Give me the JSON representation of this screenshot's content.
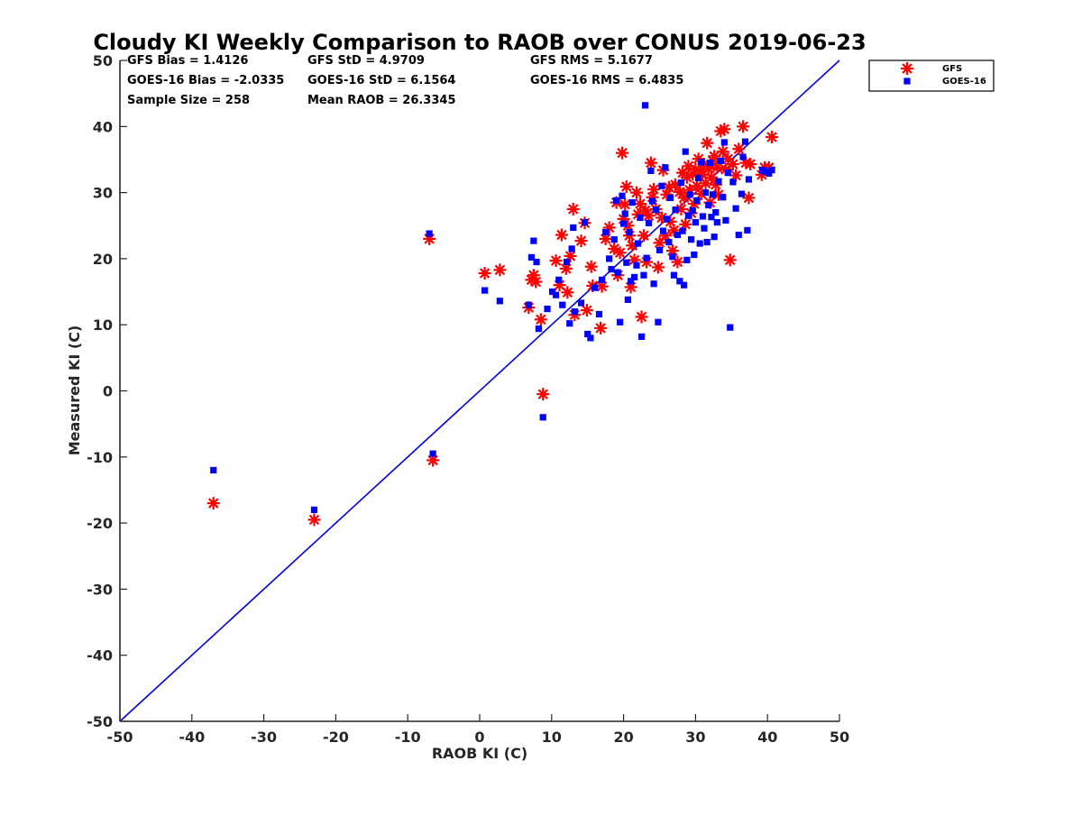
{
  "chart_data": {
    "type": "scatter",
    "title": "Cloudy KI Weekly Comparison to RAOB over CONUS 2019-06-23",
    "xlabel": "RAOB KI (C)",
    "ylabel": "Measured KI (C)",
    "xlim": [
      -50,
      50
    ],
    "ylim": [
      -50,
      50
    ],
    "xticks": [
      -50,
      -40,
      -30,
      -20,
      -10,
      0,
      10,
      20,
      30,
      40,
      50
    ],
    "yticks": [
      -50,
      -40,
      -30,
      -20,
      -10,
      0,
      10,
      20,
      30,
      40,
      50
    ],
    "legend_position": "outside-top-right",
    "stats": {
      "gfs_bias": "GFS Bias = 1.4126",
      "gfs_std": "GFS StD = 4.9709",
      "gfs_rms": "GFS RMS = 5.1677",
      "goes_bias": "GOES-16 Bias = -2.0335",
      "goes_std": "GOES-16 StD = 6.1564",
      "goes_rms": "GOES-16 RMS = 6.4835",
      "sample_size": "Sample Size = 258",
      "mean_raob": "Mean RAOB = 26.3345"
    },
    "reference_line": {
      "name": "1:1 line",
      "x": [
        -50,
        50
      ],
      "y": [
        -50,
        50
      ],
      "color": "#0000dd"
    },
    "series": [
      {
        "name": "GFS",
        "marker": "asterisk",
        "color": "#ff0000",
        "points": [
          [
            -37,
            -17
          ],
          [
            -23,
            -19.5
          ],
          [
            -7,
            23
          ],
          [
            -6.5,
            -10.5
          ],
          [
            0.7,
            17.8
          ],
          [
            2.8,
            18.3
          ],
          [
            6.8,
            12.6
          ],
          [
            7.2,
            16.8
          ],
          [
            7.5,
            17.5
          ],
          [
            7.8,
            16.5
          ],
          [
            8.5,
            10.8
          ],
          [
            8.8,
            -0.5
          ],
          [
            10.6,
            19.7
          ],
          [
            11.1,
            16
          ],
          [
            11.4,
            23.6
          ],
          [
            12,
            18.5
          ],
          [
            12.2,
            14.9
          ],
          [
            12.6,
            20.4
          ],
          [
            13,
            27.5
          ],
          [
            13.2,
            11.5
          ],
          [
            14.1,
            22.7
          ],
          [
            14.6,
            25.4
          ],
          [
            14.9,
            12.2
          ],
          [
            15.5,
            18.8
          ],
          [
            15.7,
            15.9
          ],
          [
            16.8,
            9.5
          ],
          [
            17,
            15.8
          ],
          [
            17.5,
            23
          ],
          [
            18,
            24.7
          ],
          [
            18.7,
            21.5
          ],
          [
            19,
            28.5
          ],
          [
            19.2,
            17.5
          ],
          [
            19.5,
            20.9
          ],
          [
            19.8,
            36
          ],
          [
            20,
            26
          ],
          [
            20.2,
            28.2
          ],
          [
            20.4,
            30.9
          ],
          [
            20.6,
            25
          ],
          [
            20.8,
            23.5
          ],
          [
            21,
            15.7
          ],
          [
            21.2,
            22
          ],
          [
            21.5,
            19.8
          ],
          [
            21.8,
            30
          ],
          [
            22,
            26.7
          ],
          [
            22.3,
            28.3
          ],
          [
            22.5,
            11.2
          ],
          [
            22.8,
            23.5
          ],
          [
            23,
            27.3
          ],
          [
            23.2,
            19.5
          ],
          [
            23.5,
            26.5
          ],
          [
            23.8,
            34.5
          ],
          [
            24,
            29.3
          ],
          [
            24.2,
            30.5
          ],
          [
            24.5,
            27.5
          ],
          [
            24.8,
            18.7
          ],
          [
            25,
            22.4
          ],
          [
            25.3,
            26.2
          ],
          [
            25.5,
            33.4
          ],
          [
            25.8,
            23.5
          ],
          [
            26,
            29.7
          ],
          [
            26.3,
            30.8
          ],
          [
            26.5,
            25.6
          ],
          [
            26.8,
            21.2
          ],
          [
            27,
            24.3
          ],
          [
            27.2,
            31.2
          ],
          [
            27.5,
            19.5
          ],
          [
            27.8,
            30.1
          ],
          [
            28,
            27.5
          ],
          [
            28.2,
            33
          ],
          [
            28.4,
            29.2
          ],
          [
            28.6,
            25.2
          ],
          [
            28.8,
            32.3
          ],
          [
            29,
            34
          ],
          [
            29.2,
            30.4
          ],
          [
            29.4,
            26.9
          ],
          [
            29.6,
            32.8
          ],
          [
            29.8,
            28.3
          ],
          [
            30,
            33.5
          ],
          [
            30.2,
            31
          ],
          [
            30.4,
            35.1
          ],
          [
            30.6,
            33.2
          ],
          [
            30.8,
            29.8
          ],
          [
            31,
            32.7
          ],
          [
            31.2,
            34.3
          ],
          [
            31.4,
            31.4
          ],
          [
            31.6,
            37.5
          ],
          [
            31.8,
            33.6
          ],
          [
            32,
            28.5
          ],
          [
            32.2,
            32.3
          ],
          [
            32.4,
            34.8
          ],
          [
            32.6,
            35.5
          ],
          [
            32.8,
            31.2
          ],
          [
            33,
            33.8
          ],
          [
            33.2,
            29.7
          ],
          [
            33.5,
            39.3
          ],
          [
            33.8,
            36.2
          ],
          [
            34,
            39.6
          ],
          [
            34.2,
            33.5
          ],
          [
            34.5,
            35.1
          ],
          [
            34.8,
            19.8
          ],
          [
            35.2,
            34.3
          ],
          [
            35.6,
            32.6
          ],
          [
            36,
            36.6
          ],
          [
            36.6,
            40
          ],
          [
            37,
            34.5
          ],
          [
            37.4,
            29.2
          ],
          [
            37.6,
            34.3
          ],
          [
            39.2,
            32.7
          ],
          [
            39.6,
            33.8
          ],
          [
            40.2,
            33.8
          ],
          [
            40.6,
            38.4
          ]
        ]
      },
      {
        "name": "GOES-16",
        "marker": "square",
        "color": "#0000ff",
        "points": [
          [
            -37,
            -12
          ],
          [
            -23,
            -18
          ],
          [
            -7,
            23.8
          ],
          [
            -6.5,
            -9.5
          ],
          [
            0.7,
            15.2
          ],
          [
            2.8,
            13.6
          ],
          [
            6.8,
            13
          ],
          [
            7.2,
            20.2
          ],
          [
            7.5,
            22.7
          ],
          [
            7.9,
            19.5
          ],
          [
            8.2,
            9.4
          ],
          [
            8.8,
            -4
          ],
          [
            9.4,
            12.4
          ],
          [
            10.1,
            15
          ],
          [
            10.6,
            14.5
          ],
          [
            11,
            16.8
          ],
          [
            11.5,
            13
          ],
          [
            12.1,
            19.5
          ],
          [
            12.5,
            10.2
          ],
          [
            12.8,
            21.5
          ],
          [
            13,
            24.7
          ],
          [
            13.2,
            12
          ],
          [
            14.1,
            13.3
          ],
          [
            14.6,
            25.5
          ],
          [
            15,
            8.6
          ],
          [
            15.4,
            8
          ],
          [
            16,
            15.6
          ],
          [
            16.6,
            11.6
          ],
          [
            17,
            16.8
          ],
          [
            17.5,
            24
          ],
          [
            18,
            20
          ],
          [
            18.3,
            18.4
          ],
          [
            18.7,
            22.9
          ],
          [
            19,
            28.8
          ],
          [
            19.2,
            17.9
          ],
          [
            19.5,
            10.4
          ],
          [
            19.8,
            29.5
          ],
          [
            20,
            25.3
          ],
          [
            20.2,
            26.8
          ],
          [
            20.4,
            19.4
          ],
          [
            20.6,
            13.8
          ],
          [
            20.8,
            24
          ],
          [
            21,
            16.6
          ],
          [
            21.2,
            28.5
          ],
          [
            21.5,
            17.2
          ],
          [
            21.8,
            19
          ],
          [
            22,
            22.3
          ],
          [
            22.3,
            26.2
          ],
          [
            22.5,
            8.2
          ],
          [
            22.8,
            17.5
          ],
          [
            23,
            43.2
          ],
          [
            23.2,
            20.1
          ],
          [
            23.5,
            25.4
          ],
          [
            23.8,
            33.3
          ],
          [
            24,
            28.7
          ],
          [
            24.2,
            16.2
          ],
          [
            24.5,
            27.4
          ],
          [
            24.8,
            10.4
          ],
          [
            25,
            21.3
          ],
          [
            25.3,
            31
          ],
          [
            25.5,
            24.2
          ],
          [
            25.8,
            33.8
          ],
          [
            26,
            26
          ],
          [
            26.3,
            22.5
          ],
          [
            26.5,
            29.2
          ],
          [
            26.8,
            20.3
          ],
          [
            27,
            17.5
          ],
          [
            27.2,
            27.4
          ],
          [
            27.5,
            23.6
          ],
          [
            27.8,
            16.6
          ],
          [
            28,
            31.5
          ],
          [
            28.2,
            24.2
          ],
          [
            28.4,
            16
          ],
          [
            28.6,
            36.2
          ],
          [
            28.8,
            19.8
          ],
          [
            29,
            26.5
          ],
          [
            29.2,
            29.7
          ],
          [
            29.4,
            22.9
          ],
          [
            29.6,
            27.3
          ],
          [
            29.8,
            20.6
          ],
          [
            30,
            25.5
          ],
          [
            30.2,
            28.8
          ],
          [
            30.4,
            32.2
          ],
          [
            30.6,
            22.3
          ],
          [
            30.8,
            34.6
          ],
          [
            31,
            26.4
          ],
          [
            31.2,
            24.6
          ],
          [
            31.4,
            30
          ],
          [
            31.6,
            22.5
          ],
          [
            31.8,
            28.1
          ],
          [
            32,
            34.5
          ],
          [
            32.2,
            26.3
          ],
          [
            32.4,
            29.7
          ],
          [
            32.6,
            23.3
          ],
          [
            32.8,
            27
          ],
          [
            33,
            25.5
          ],
          [
            33.2,
            31.7
          ],
          [
            33.5,
            34.8
          ],
          [
            33.8,
            29.3
          ],
          [
            34,
            37.6
          ],
          [
            34.2,
            25.8
          ],
          [
            34.5,
            33
          ],
          [
            34.8,
            9.6
          ],
          [
            35.2,
            31.6
          ],
          [
            35.6,
            27.6
          ],
          [
            36,
            23.6
          ],
          [
            36.4,
            29.8
          ],
          [
            36.6,
            35.4
          ],
          [
            36.9,
            37.7
          ],
          [
            37.2,
            24.3
          ],
          [
            37.4,
            32
          ],
          [
            39.3,
            33.4
          ],
          [
            39.6,
            33.2
          ],
          [
            40.2,
            32.9
          ],
          [
            40.6,
            33.4
          ]
        ]
      }
    ]
  }
}
